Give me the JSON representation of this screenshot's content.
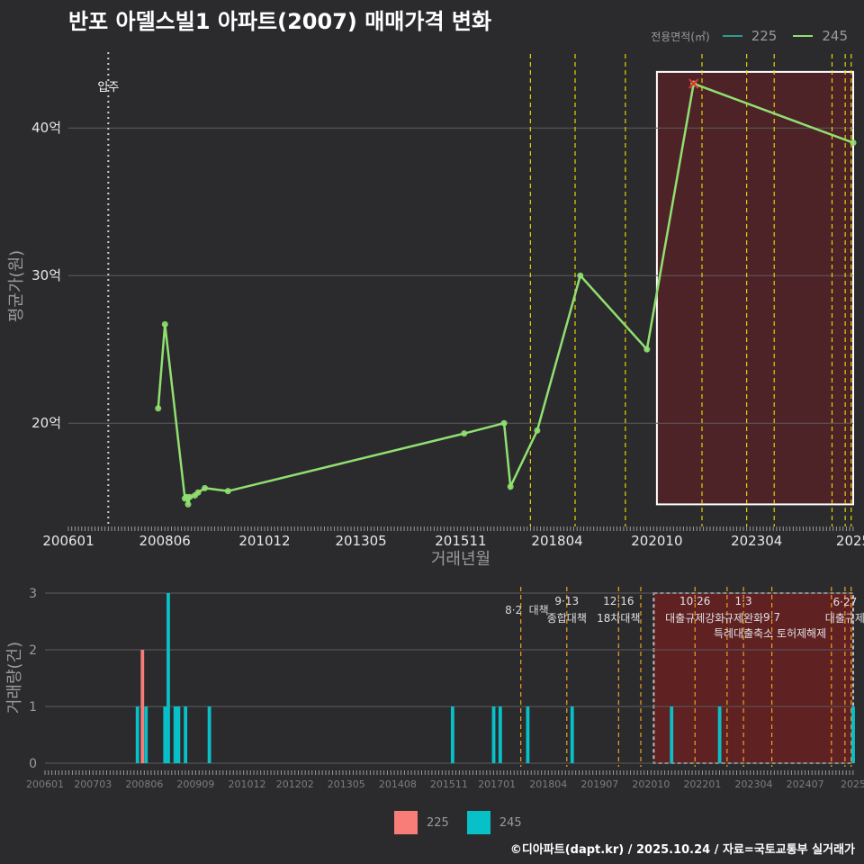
{
  "title": "반포 아델스빌1 아파트(2007) 매매가격 변화",
  "legend": {
    "title": "전용면적(㎡)",
    "series": [
      {
        "label": "225",
        "line_color": "#2a9d8f",
        "bar_color": "#f87c78"
      },
      {
        "label": "245",
        "line_color": "#90e070",
        "bar_color": "#08c0c8"
      }
    ]
  },
  "footer": "©디아파트(dapt.kr) / 2025.10.24 / 자료=국토교통부 실거래가",
  "chart_data": [
    {
      "type": "line",
      "name": "price-chart",
      "xlabel": "거래년월",
      "ylabel": "평균가(원)",
      "xlim": [
        2006.0,
        2025.67
      ],
      "ylim": [
        13.0,
        45.5
      ],
      "xticks": [
        2006.0,
        2008.417,
        2010.917,
        2013.333,
        2015.833,
        2018.25,
        2020.75,
        2023.25,
        2025.67
      ],
      "xtick_labels": [
        "200601",
        "200806",
        "201012",
        "201305",
        "201511",
        "201804",
        "202010",
        "202304",
        "2025"
      ],
      "yticks": [
        20,
        30,
        40
      ],
      "ytick_labels": [
        "20억",
        "30억",
        "40억"
      ],
      "move_in": {
        "x": 2007.0,
        "label": "입주"
      },
      "policy_lines": [
        2017.58,
        2018.7,
        2019.96,
        2021.88,
        2023.0,
        2023.69,
        2025.14,
        2025.47,
        2025.62
      ],
      "highlight_range": [
        2020.75,
        2025.67
      ],
      "series": [
        {
          "name": "245",
          "points": [
            {
              "x": 2008.25,
              "y": 21.0
            },
            {
              "x": 2008.42,
              "y": 26.7
            },
            {
              "x": 2008.92,
              "y": 14.9
            },
            {
              "x": 2008.96,
              "y": 15.0
            },
            {
              "x": 2009.0,
              "y": 14.5
            },
            {
              "x": 2009.04,
              "y": 15.0
            },
            {
              "x": 2009.17,
              "y": 15.1
            },
            {
              "x": 2009.25,
              "y": 15.3
            },
            {
              "x": 2009.42,
              "y": 15.6
            },
            {
              "x": 2010.0,
              "y": 15.4
            },
            {
              "x": 2015.92,
              "y": 19.3
            },
            {
              "x": 2016.92,
              "y": 20.0
            },
            {
              "x": 2017.08,
              "y": 15.7
            },
            {
              "x": 2017.75,
              "y": 19.5
            },
            {
              "x": 2018.83,
              "y": 30.0
            },
            {
              "x": 2020.5,
              "y": 25.0
            },
            {
              "x": 2021.67,
              "y": 43.0
            },
            {
              "x": 2025.67,
              "y": 39.0
            }
          ]
        }
      ],
      "max_marker": {
        "x": 2021.67,
        "y": 43.0
      }
    },
    {
      "type": "bar",
      "name": "volume-chart",
      "ylabel": "거래량(건)",
      "xlim": [
        2006.0,
        2025.67
      ],
      "ylim": [
        0,
        3
      ],
      "yticks": [
        0,
        1,
        2,
        3
      ],
      "ytick_labels": [
        "0",
        "1",
        "2",
        "3"
      ],
      "xticks": [
        2006.0,
        2007.167,
        2008.417,
        2009.667,
        2010.917,
        2012.083,
        2013.333,
        2014.583,
        2015.833,
        2017.0,
        2018.25,
        2019.5,
        2020.75,
        2022.0,
        2023.25,
        2024.5,
        2025.67
      ],
      "xtick_labels": [
        "200601",
        "200703",
        "200806",
        "200909",
        "201012",
        "201202",
        "201305",
        "201408",
        "201511",
        "201701",
        "201804",
        "201907",
        "202010",
        "202201",
        "202304",
        "202407",
        "2025"
      ],
      "highlight_range": [
        2020.75,
        2025.67
      ],
      "policies": [
        {
          "x": 2017.58,
          "date": "8·2",
          "name": "대책"
        },
        {
          "x": 2018.7,
          "date": "9·13",
          "name": "종합대책"
        },
        {
          "x": 2019.96,
          "date": "12·16",
          "name": "18차대책"
        },
        {
          "x": 2020.5,
          "date": "",
          "name": ""
        },
        {
          "x": 2021.82,
          "date": "10·26",
          "name": "대출규제강화"
        },
        {
          "x": 2022.6,
          "date": "",
          "name": ""
        },
        {
          "x": 2023.0,
          "date": "1·3",
          "name": "규제완화"
        },
        {
          "x": 2023.69,
          "date": "9·7",
          "name": "특례대출축소 토허제해제"
        },
        {
          "x": 2025.14,
          "date": "",
          "name": ""
        },
        {
          "x": 2025.47,
          "date": "6·27",
          "name": "대출규제"
        },
        {
          "x": 2025.62,
          "date": "",
          "name": ""
        }
      ],
      "bars": [
        {
          "x": 2008.25,
          "series": "245",
          "value": 1
        },
        {
          "x": 2008.42,
          "series": "225",
          "value": 2
        },
        {
          "x": 2008.42,
          "series": "245",
          "value": 1
        },
        {
          "x": 2008.92,
          "series": "245",
          "value": 1
        },
        {
          "x": 2009.0,
          "series": "245",
          "value": 3
        },
        {
          "x": 2009.17,
          "series": "245",
          "value": 1
        },
        {
          "x": 2009.25,
          "series": "245",
          "value": 1
        },
        {
          "x": 2009.42,
          "series": "245",
          "value": 1
        },
        {
          "x": 2010.0,
          "series": "245",
          "value": 1
        },
        {
          "x": 2015.92,
          "series": "245",
          "value": 1
        },
        {
          "x": 2016.92,
          "series": "245",
          "value": 1
        },
        {
          "x": 2017.08,
          "series": "245",
          "value": 1
        },
        {
          "x": 2017.75,
          "series": "245",
          "value": 1
        },
        {
          "x": 2018.83,
          "series": "245",
          "value": 1
        },
        {
          "x": 2021.25,
          "series": "245",
          "value": 1
        },
        {
          "x": 2022.42,
          "series": "245",
          "value": 1
        },
        {
          "x": 2025.67,
          "series": "245",
          "value": 1
        }
      ]
    }
  ]
}
